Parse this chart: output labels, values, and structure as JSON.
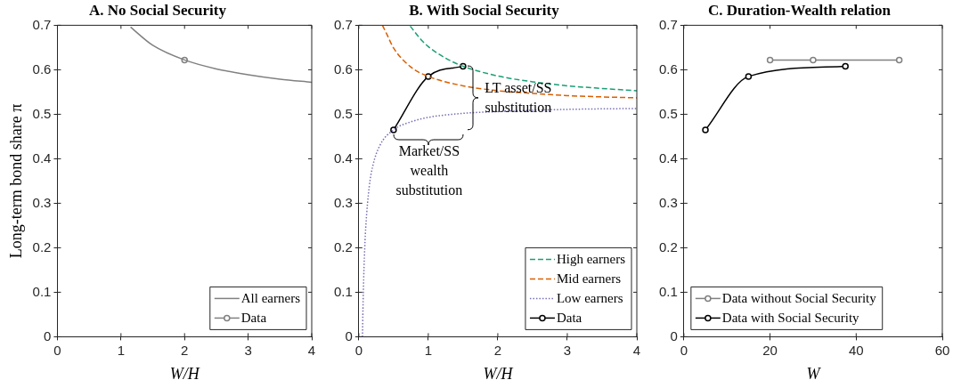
{
  "chart_data": [
    {
      "type": "line",
      "title": "A. No Social Security",
      "xlabel": "W/H",
      "ylabel": "Long-term bond share π",
      "xlim": [
        0,
        4
      ],
      "ylim": [
        0,
        0.7
      ],
      "xticks": [
        0,
        1,
        2,
        3,
        4
      ],
      "yticks": [
        0,
        0.1,
        0.2,
        0.3,
        0.4,
        0.5,
        0.6,
        0.7
      ],
      "legend": "bottom right",
      "series": [
        {
          "name": "All earners",
          "color": "#808080",
          "type": "line",
          "marker": "none",
          "line_style": "solid",
          "x": [
            1.15,
            1.5,
            2,
            2.5,
            3,
            3.5,
            4
          ],
          "values": [
            0.696,
            0.655,
            0.622,
            0.602,
            0.589,
            0.579,
            0.572
          ]
        },
        {
          "name": "Data",
          "color": "#808080",
          "type": "line",
          "marker": "circle",
          "line_style": "solid",
          "x": [
            2
          ],
          "values": [
            0.622
          ]
        }
      ]
    },
    {
      "type": "line",
      "title": "B. With Social Security",
      "xlabel": "W/H",
      "xlim": [
        0,
        4
      ],
      "ylim": [
        0,
        0.7
      ],
      "xticks": [
        0,
        1,
        2,
        3,
        4
      ],
      "yticks": [
        0,
        0.1,
        0.2,
        0.3,
        0.4,
        0.5,
        0.6,
        0.7
      ],
      "legend": "bottom right",
      "annotations": [
        {
          "text": "Market/SS wealth substitution",
          "x": 0.5,
          "y": 0.465
        },
        {
          "text": "LT asset/SS substitution",
          "x": 1.5,
          "y": 0.608
        }
      ],
      "series": [
        {
          "name": "High earners",
          "color": "#1b9e77",
          "type": "line",
          "marker": "none",
          "line_style": "dashed",
          "x": [
            0.74,
            0.9,
            1,
            1.25,
            1.5,
            2,
            2.5,
            3,
            3.5,
            4
          ],
          "values": [
            0.698,
            0.667,
            0.652,
            0.626,
            0.608,
            0.586,
            0.573,
            0.564,
            0.558,
            0.553
          ]
        },
        {
          "name": "Mid earners",
          "color": "#d95f02",
          "type": "line",
          "marker": "none",
          "line_style": "dashed",
          "x": [
            0.34,
            0.4,
            0.5,
            0.75,
            1,
            1.5,
            2,
            2.5,
            3,
            3.5,
            4
          ],
          "values": [
            0.7,
            0.681,
            0.649,
            0.606,
            0.585,
            0.564,
            0.553,
            0.547,
            0.542,
            0.539,
            0.537
          ]
        },
        {
          "name": "Low earners",
          "color": "#7570b3",
          "type": "line",
          "marker": "none",
          "line_style": "dotted",
          "x": [
            0.053,
            0.06,
            0.07,
            0.08,
            0.1,
            0.15,
            0.2,
            0.3,
            0.5,
            0.75,
            1,
            1.5,
            2,
            3,
            4
          ],
          "values": [
            0,
            0.063,
            0.129,
            0.178,
            0.246,
            0.337,
            0.383,
            0.429,
            0.465,
            0.483,
            0.493,
            0.502,
            0.506,
            0.511,
            0.513
          ]
        },
        {
          "name": "Data",
          "color": "#000000",
          "type": "line",
          "marker": "circle",
          "line_style": "solid",
          "x": [
            0.5,
            1,
            1.5
          ],
          "values": [
            0.465,
            0.585,
            0.608
          ]
        }
      ]
    },
    {
      "type": "line",
      "title": "C. Duration-Wealth relation",
      "xlabel": "W",
      "xlim": [
        0,
        60
      ],
      "ylim": [
        0,
        0.7
      ],
      "xticks": [
        0,
        20,
        40,
        60
      ],
      "yticks": [
        0,
        0.1,
        0.2,
        0.3,
        0.4,
        0.5,
        0.6,
        0.7
      ],
      "legend": "bottom left",
      "series": [
        {
          "name": "Data without Social Security",
          "color": "#808080",
          "type": "line",
          "marker": "circle",
          "line_style": "solid",
          "x": [
            20,
            30,
            50
          ],
          "values": [
            0.622,
            0.622,
            0.622
          ]
        },
        {
          "name": "Data with Social Security",
          "color": "#000000",
          "type": "line",
          "marker": "circle",
          "line_style": "solid",
          "x": [
            5,
            15,
            37.5
          ],
          "values": [
            0.465,
            0.585,
            0.608
          ]
        }
      ]
    }
  ]
}
